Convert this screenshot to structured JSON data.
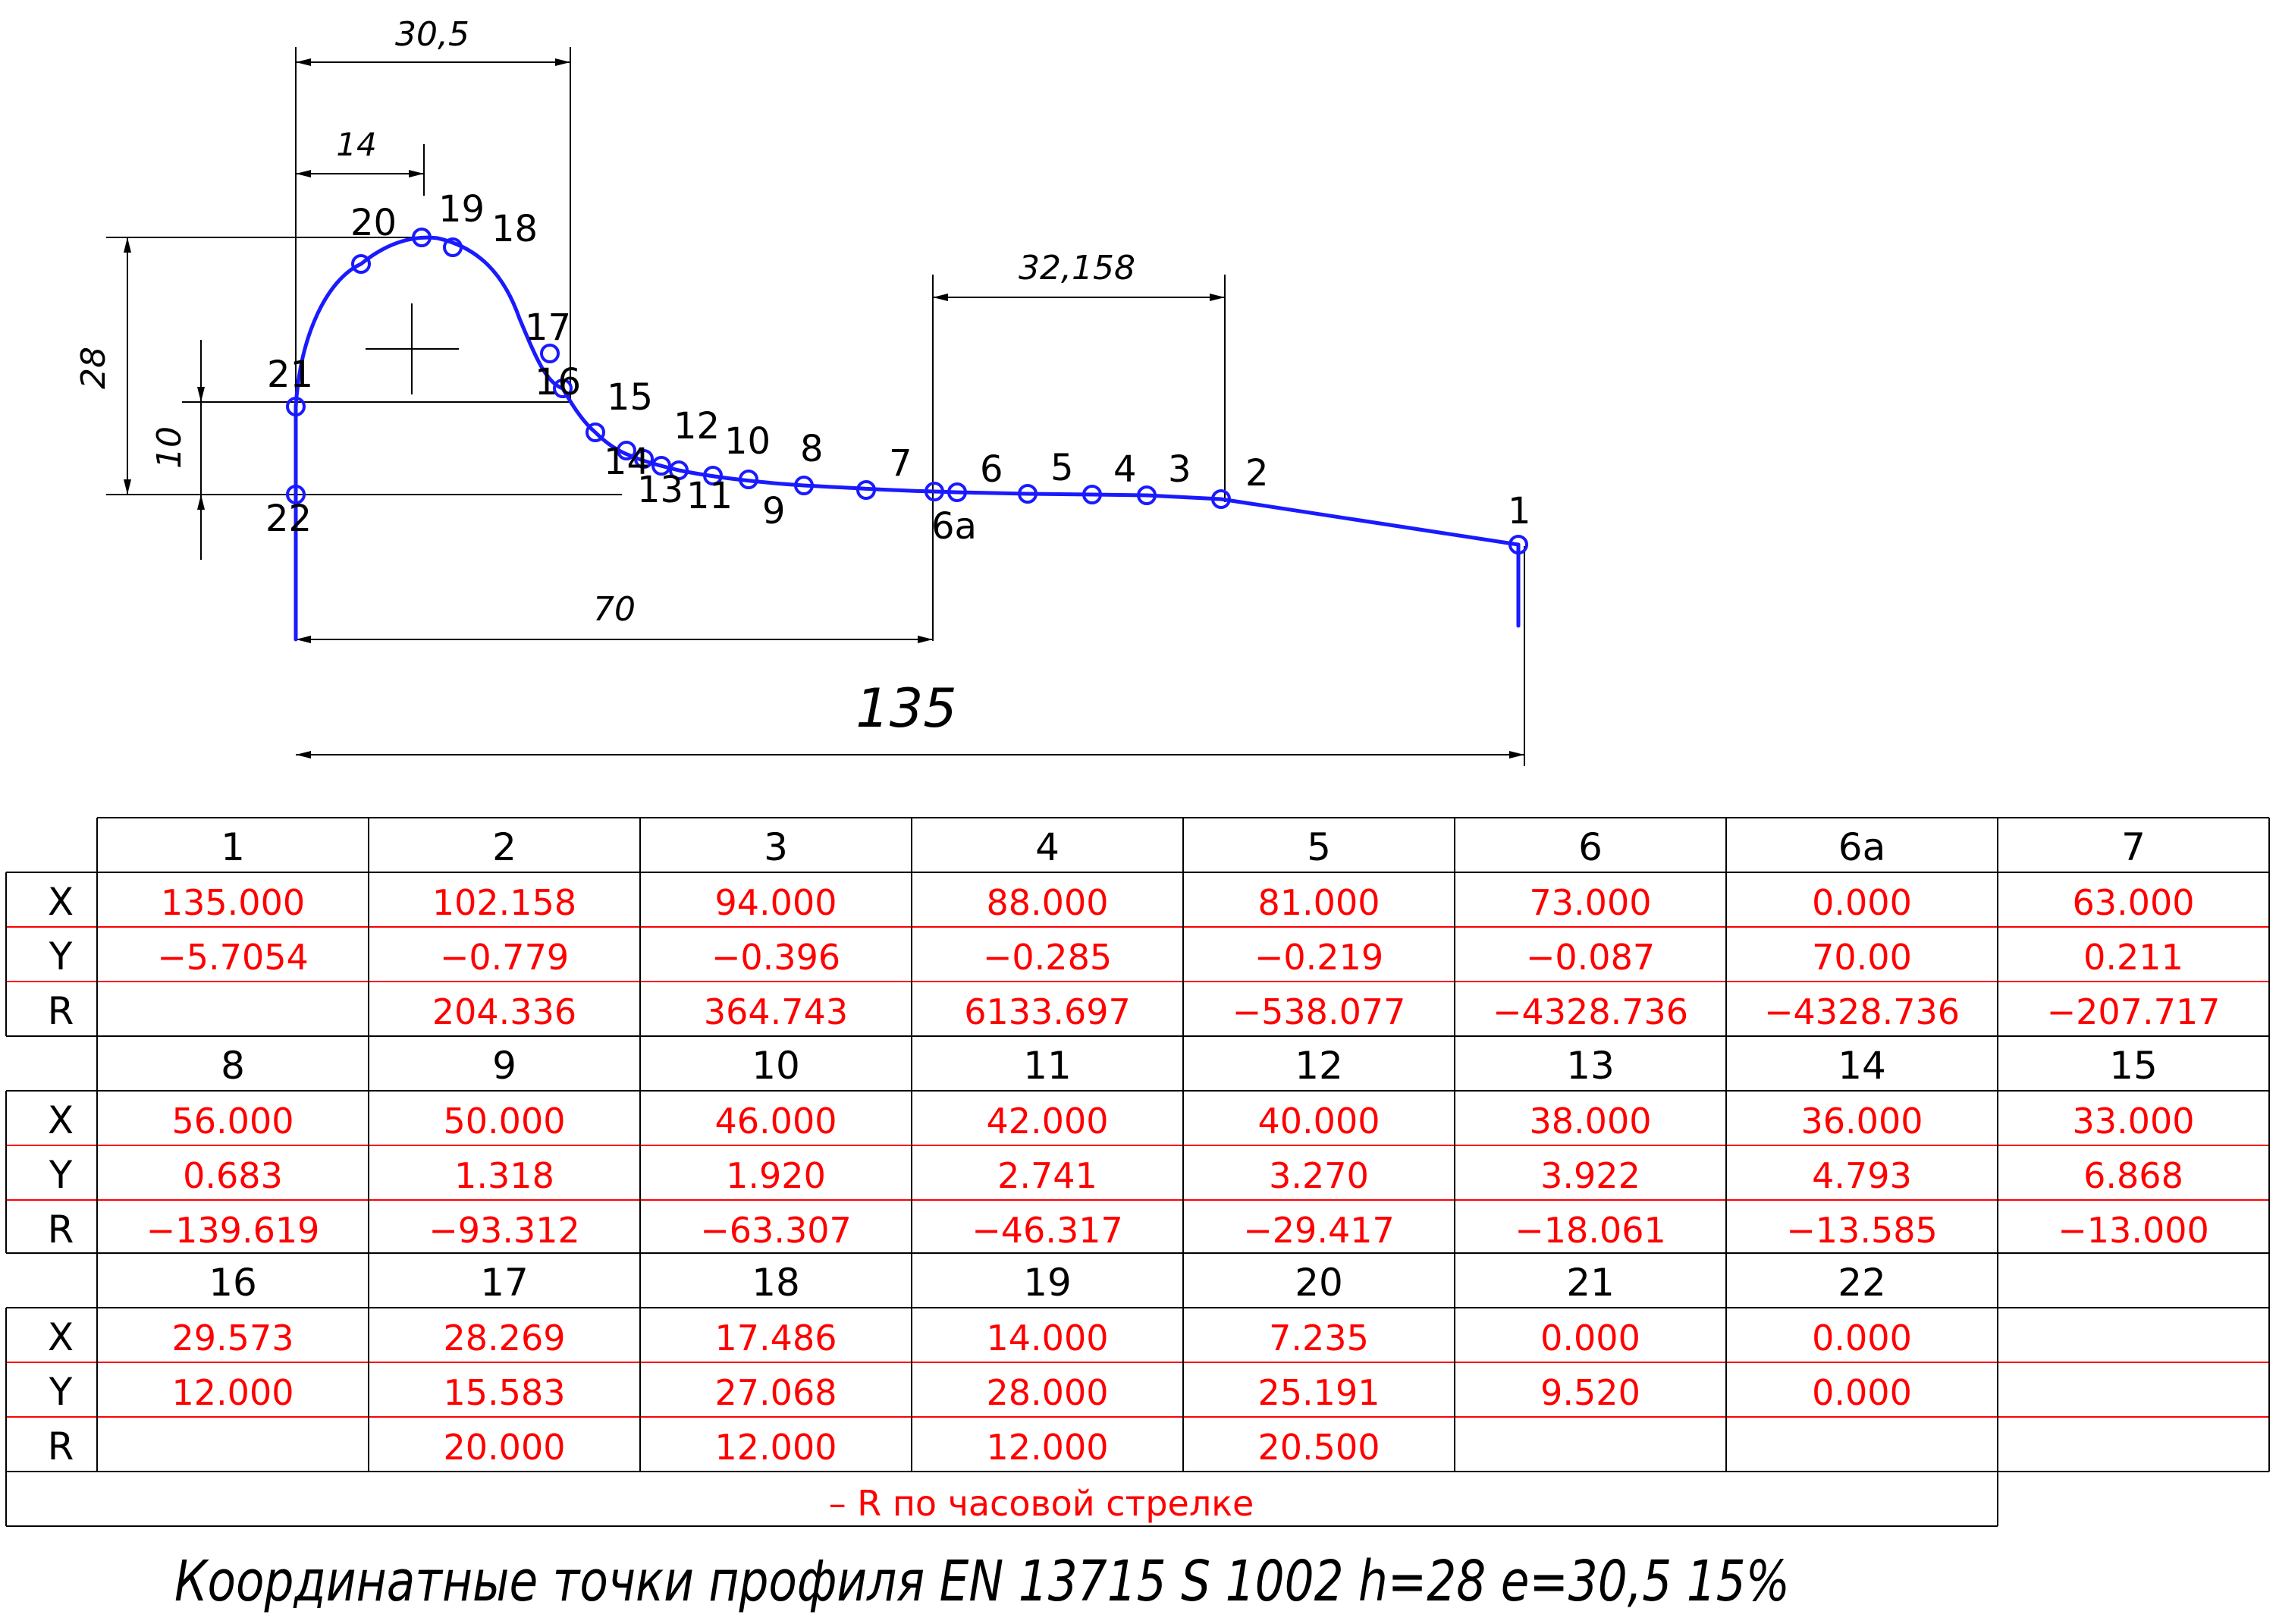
{
  "drawing": {
    "dimensions": {
      "overall_width": "135",
      "width_70": "70",
      "width_30_5": "30,5",
      "width_14": "14",
      "width_32_158": "32,158",
      "height_28": "28",
      "height_10": "10"
    },
    "profile_points": [
      {
        "label": "1"
      },
      {
        "label": "2"
      },
      {
        "label": "3"
      },
      {
        "label": "4"
      },
      {
        "label": "5"
      },
      {
        "label": "6"
      },
      {
        "label": "6а"
      },
      {
        "label": "7"
      },
      {
        "label": "8"
      },
      {
        "label": "9"
      },
      {
        "label": "10"
      },
      {
        "label": "11"
      },
      {
        "label": "12"
      },
      {
        "label": "13"
      },
      {
        "label": "14"
      },
      {
        "label": "15"
      },
      {
        "label": "16"
      },
      {
        "label": "17"
      },
      {
        "label": "18"
      },
      {
        "label": "19"
      },
      {
        "label": "20"
      },
      {
        "label": "21"
      },
      {
        "label": "22"
      }
    ]
  },
  "table": {
    "row_labels": [
      "X",
      "Y",
      "R"
    ],
    "blocks": [
      {
        "points": [
          {
            "label": "1",
            "x": "135.000",
            "y": "−5.7054",
            "r": ""
          },
          {
            "label": "2",
            "x": "102.158",
            "y": "−0.779",
            "r": "204.336"
          },
          {
            "label": "3",
            "x": "94.000",
            "y": "−0.396",
            "r": "364.743"
          },
          {
            "label": "4",
            "x": "88.000",
            "y": "−0.285",
            "r": "6133.697"
          },
          {
            "label": "5",
            "x": "81.000",
            "y": "−0.219",
            "r": "−538.077"
          },
          {
            "label": "6",
            "x": "73.000",
            "y": "−0.087",
            "r": "−4328.736"
          },
          {
            "label": "6а",
            "x": "0.000",
            "y": "70.00",
            "r": "−4328.736"
          },
          {
            "label": "7",
            "x": "63.000",
            "y": "0.211",
            "r": "−207.717"
          }
        ]
      },
      {
        "points": [
          {
            "label": "8",
            "x": "56.000",
            "y": "0.683",
            "r": "−139.619"
          },
          {
            "label": "9",
            "x": "50.000",
            "y": "1.318",
            "r": "−93.312"
          },
          {
            "label": "10",
            "x": "46.000",
            "y": "1.920",
            "r": "−63.307"
          },
          {
            "label": "11",
            "x": "42.000",
            "y": "2.741",
            "r": "−46.317"
          },
          {
            "label": "12",
            "x": "40.000",
            "y": "3.270",
            "r": "−29.417"
          },
          {
            "label": "13",
            "x": "38.000",
            "y": "3.922",
            "r": "−18.061"
          },
          {
            "label": "14",
            "x": "36.000",
            "y": "4.793",
            "r": "−13.585"
          },
          {
            "label": "15",
            "x": "33.000",
            "y": "6.868",
            "r": "−13.000"
          }
        ]
      },
      {
        "points": [
          {
            "label": "16",
            "x": "29.573",
            "y": "12.000",
            "r": ""
          },
          {
            "label": "17",
            "x": "28.269",
            "y": "15.583",
            "r": "20.000"
          },
          {
            "label": "18",
            "x": "17.486",
            "y": "27.068",
            "r": "12.000"
          },
          {
            "label": "19",
            "x": "14.000",
            "y": "28.000",
            "r": "12.000"
          },
          {
            "label": "20",
            "x": "7.235",
            "y": "25.191",
            "r": "20.500"
          },
          {
            "label": "21",
            "x": "0.000",
            "y": "9.520",
            "r": ""
          },
          {
            "label": "22",
            "x": "0.000",
            "y": "0.000",
            "r": ""
          },
          {
            "label": "",
            "x": "",
            "y": "",
            "r": ""
          }
        ]
      }
    ],
    "note": "– R по часовой стрелке"
  },
  "caption": "Координатные точки профиля EN 13715 S 1002 h=28 e=30,5 15%",
  "colors": {
    "profile": "#1a1aff",
    "values": "#ff0000",
    "note": "#ff0000",
    "ink": "#000000",
    "grid": "#000000",
    "row_separator": "#ff0000"
  }
}
